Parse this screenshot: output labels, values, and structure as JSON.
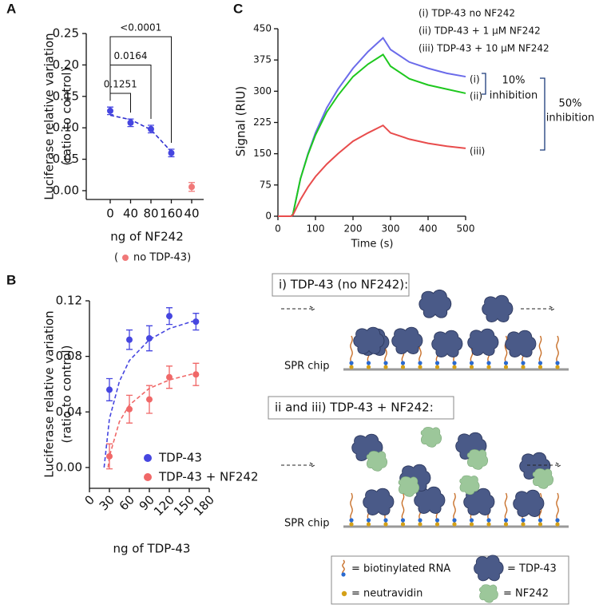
{
  "panels": {
    "a": "A",
    "b": "B",
    "c": "C"
  },
  "chart_data": [
    {
      "type": "dot",
      "ylabel": [
        "Luciferase relative variation",
        "(ratio to control)"
      ],
      "xlabel": "ng of NF242",
      "categories": [
        "0",
        "40",
        "80",
        "160",
        "40"
      ],
      "values": [
        0.127,
        0.108,
        0.098,
        0.06,
        0.006
      ],
      "errors": [
        0.006,
        0.006,
        0.006,
        0.006,
        0.007
      ],
      "colors": [
        "#4646e0",
        "#4646e0",
        "#4646e0",
        "#4646e0",
        "#f07878"
      ],
      "fit_values": [
        0.12,
        0.113,
        0.097,
        0.062,
        null
      ],
      "fit_color": "#2f2fd0",
      "ylim": [
        -0.014,
        0.25
      ],
      "yticks": [
        {
          "value": 0,
          "label": "0.00"
        },
        {
          "value": 0.05,
          "label": "0.05"
        },
        {
          "value": 0.1,
          "label": "0.10"
        },
        {
          "value": 0.15,
          "label": "0.15"
        },
        {
          "value": 0.2,
          "label": "0.20"
        },
        {
          "value": 0.25,
          "label": "0.25"
        }
      ],
      "brackets": [
        {
          "label": "0.1251",
          "from": 0,
          "to": 1
        },
        {
          "label": "0.0164",
          "from": 0,
          "to": 2
        },
        {
          "label": "<0.0001",
          "from": 0,
          "to": 3
        }
      ],
      "note_open": "(",
      "note_text": "no TDP-43)",
      "note_color": "#f07878"
    },
    {
      "type": "scatter",
      "ylabel": [
        "Luciferase relative variation",
        "(ratio to control)"
      ],
      "xlabel": "ng of TDP-43",
      "x": [
        30,
        60,
        90,
        120,
        160
      ],
      "series": [
        {
          "name": "TDP-43",
          "color": "#4646e0",
          "values": [
            0.056,
            0.092,
            0.093,
            0.109,
            0.105
          ],
          "errors": [
            0.008,
            0.007,
            0.009,
            0.006,
            0.006
          ],
          "fit_x": [
            22,
            30,
            45,
            60,
            90,
            120,
            160
          ],
          "fit_values": [
            0,
            0.035,
            0.062,
            0.077,
            0.092,
            0.1,
            0.106
          ]
        },
        {
          "name": "TDP-43 + NF242",
          "color": "#f06868",
          "values": [
            0.008,
            0.042,
            0.049,
            0.065,
            0.067
          ],
          "errors": [
            0.009,
            0.01,
            0.01,
            0.008,
            0.008
          ],
          "fit_x": [
            28,
            30,
            45,
            60,
            90,
            120,
            160
          ],
          "fit_values": [
            0,
            0.008,
            0.033,
            0.045,
            0.057,
            0.063,
            0.068
          ]
        }
      ],
      "xlim": [
        0,
        180
      ],
      "xticks": [
        0,
        30,
        60,
        90,
        120,
        150,
        180
      ],
      "ylim": [
        -0.015,
        0.12
      ],
      "yticks": [
        {
          "value": 0,
          "label": "0.00"
        },
        {
          "value": 0.04,
          "label": "0.04"
        },
        {
          "value": 0.08,
          "label": "0.08"
        },
        {
          "value": 0.12,
          "label": "0.12"
        }
      ]
    },
    {
      "type": "line",
      "ylabel": "Signal (RIU)",
      "xlabel": "Time (s)",
      "x": [
        0,
        35,
        40,
        60,
        80,
        100,
        130,
        160,
        200,
        240,
        280,
        300,
        350,
        400,
        450,
        500
      ],
      "series": [
        {
          "name": "(i) TDP-43 no NF242",
          "end_label": "(i)",
          "color": "#6b6bea",
          "values": [
            0,
            0,
            5,
            90,
            150,
            200,
            260,
            305,
            355,
            395,
            428,
            400,
            370,
            355,
            343,
            335
          ]
        },
        {
          "name": "(ii) TDP-43 + 1 μM NF242",
          "end_label": "(ii)",
          "color": "#1ec81e",
          "values": [
            0,
            0,
            5,
            90,
            148,
            195,
            250,
            290,
            335,
            365,
            388,
            360,
            330,
            315,
            305,
            295
          ]
        },
        {
          "name": "(iii) TDP-43 + 10 μM NF242",
          "end_label": "(iii)",
          "color": "#e84c4c",
          "values": [
            0,
            0,
            3,
            40,
            70,
            95,
            125,
            150,
            180,
            200,
            218,
            200,
            185,
            175,
            168,
            163
          ]
        }
      ],
      "xlim": [
        0,
        500
      ],
      "xticks": [
        0,
        100,
        200,
        300,
        400,
        500
      ],
      "ylim": [
        0,
        450
      ],
      "yticks": [
        0,
        75,
        150,
        225,
        300,
        375,
        450
      ],
      "inhibition_10": [
        "10%",
        "inhibition"
      ],
      "inhibition_50": [
        "50%",
        "inhibition"
      ]
    }
  ],
  "schematic": {
    "top": {
      "title": "i) TDP-43 (no NF242):",
      "chip": "SPR chip"
    },
    "bottom": {
      "title": "ii and iii) TDP-43 + NF242:",
      "chip": "SPR chip"
    },
    "legend": {
      "rna": "= biotinylated RNA",
      "tdp": "= TDP-43",
      "neutravidin": "= neutravidin",
      "nf242": "= NF242"
    }
  }
}
